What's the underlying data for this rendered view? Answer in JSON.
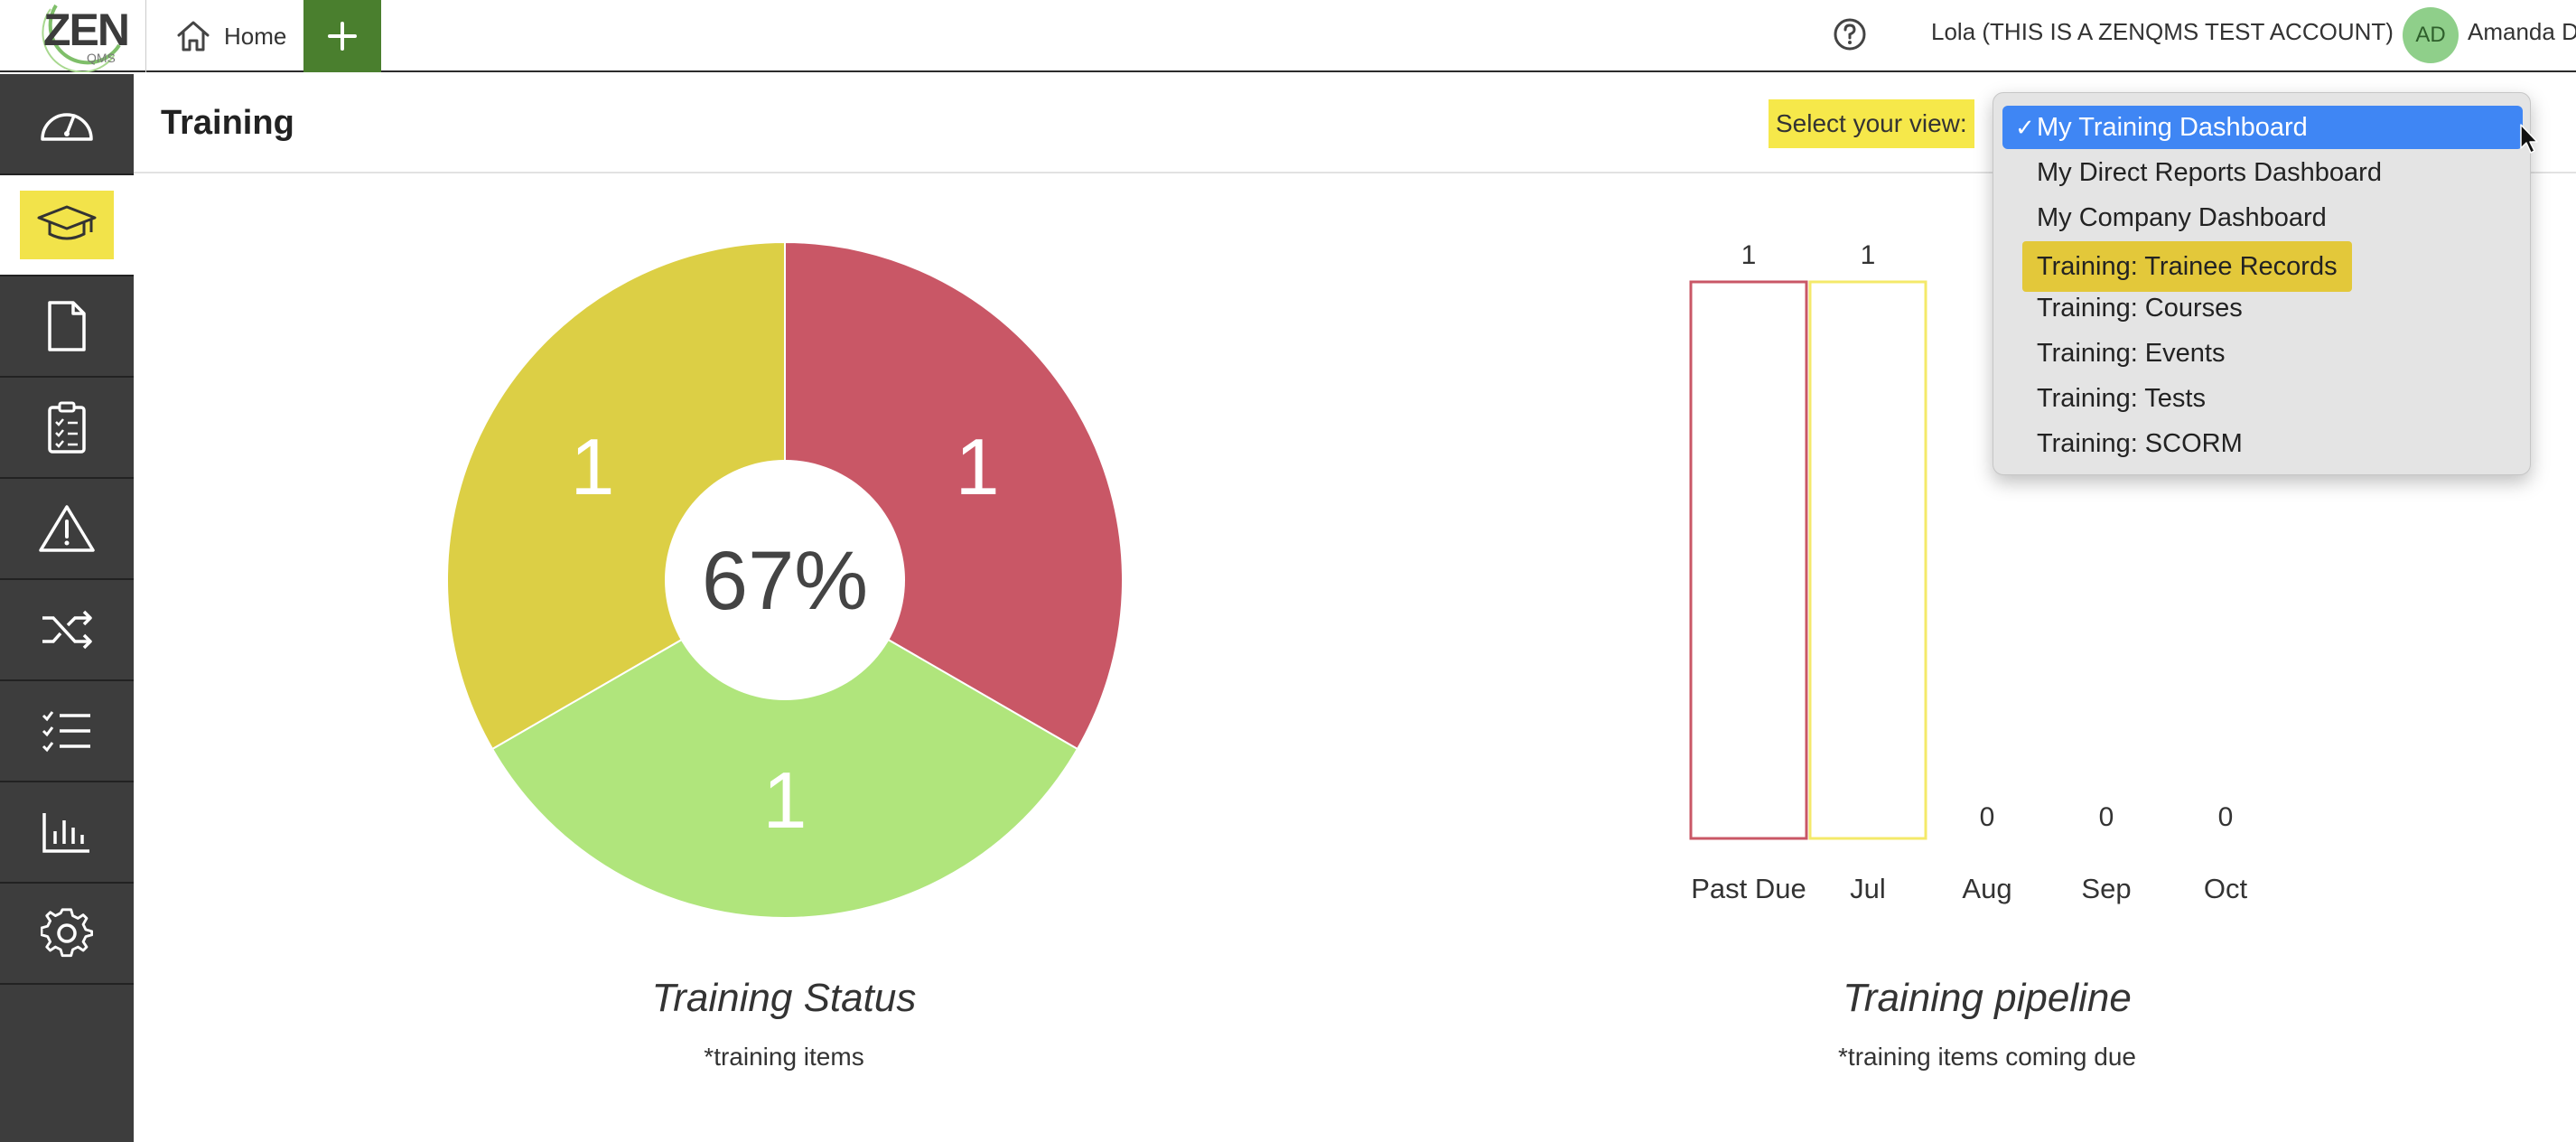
{
  "topbar": {
    "logo_text": "ZEN",
    "logo_sub": "QMS",
    "home_label": "Home",
    "account_label": "Lola (THIS IS A ZENQMS TEST ACCOUNT)",
    "avatar_initials": "AD",
    "user_name": "Amanda D"
  },
  "sidebar": {
    "items": [
      {
        "icon": "dashboard-gauge-icon"
      },
      {
        "icon": "graduation-cap-icon",
        "active": true
      },
      {
        "icon": "document-icon"
      },
      {
        "icon": "clipboard-checklist-icon"
      },
      {
        "icon": "warning-triangle-icon"
      },
      {
        "icon": "shuffle-icon"
      },
      {
        "icon": "checklist-icon"
      },
      {
        "icon": "bar-chart-icon"
      },
      {
        "icon": "gear-icon"
      }
    ]
  },
  "header": {
    "title": "Training",
    "view_label": "Select your view:"
  },
  "view_dropdown": {
    "selected": "My Training Dashboard",
    "hovered": "Training: Trainee Records",
    "options": [
      "My Training Dashboard",
      "My Direct Reports Dashboard",
      "My Company Dashboard",
      "Training: Trainee Records",
      "Training: Courses",
      "Training: Events",
      "Training: Tests",
      "Training: SCORM"
    ]
  },
  "colors": {
    "red": "#c95766",
    "yellow": "#dccf45",
    "green": "#b0e57c",
    "accent_green": "#4a7f2e",
    "highlight": "#f6e84a",
    "select_blue": "#3f86f4"
  },
  "chart_data": [
    {
      "type": "pie",
      "title": "Training Status",
      "subtitle": "*training items",
      "center_label": "67%",
      "slices": [
        {
          "color": "#c95766",
          "value": 1
        },
        {
          "color": "#b0e57c",
          "value": 1
        },
        {
          "color": "#dccf45",
          "value": 1
        }
      ]
    },
    {
      "type": "bar",
      "title": "Training pipeline",
      "subtitle": "*training items coming due",
      "categories": [
        "Past Due",
        "Jul",
        "Aug",
        "Sep",
        "Oct"
      ],
      "values": [
        1,
        1,
        0,
        0,
        0
      ],
      "colors": [
        "#c95766",
        "#f4e96a",
        "#cccccc",
        "#cccccc",
        "#cccccc"
      ]
    }
  ]
}
